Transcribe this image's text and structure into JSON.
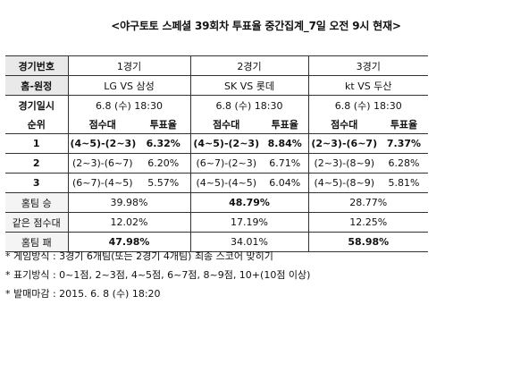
{
  "title": "<야구토토 스페셜 39회차 투표율 중간집계_7일 오전 9시 현재>",
  "labels": {
    "game_no": "경기번호",
    "teams": "홈-원정",
    "datetime": "경기일시",
    "rank": "순위",
    "score": "점수대",
    "rate": "투표율",
    "home_win": "홈팀 승",
    "same": "같은 점수대",
    "home_loss": "홈팀 패"
  },
  "games": [
    {
      "number": "1경기",
      "matchup": "LG VS 삼성",
      "datetime": "6.8 (수) 18:30",
      "ranks": [
        {
          "score": "(4~5)-(2~3)",
          "rate": "6.32%"
        },
        {
          "score": "(2~3)-(6~7)",
          "rate": "6.20%"
        },
        {
          "score": "(6~7)-(4~5)",
          "rate": "5.57%"
        }
      ],
      "home_win": "39.98%",
      "same": "12.02%",
      "home_loss": "47.98%"
    },
    {
      "number": "2경기",
      "matchup": "SK VS 롯데",
      "datetime": "6.8 (수) 18:30",
      "ranks": [
        {
          "score": "(4~5)-(2~3)",
          "rate": "8.84%"
        },
        {
          "score": "(6~7)-(2~3)",
          "rate": "6.71%"
        },
        {
          "score": "(4~5)-(4~5)",
          "rate": "6.04%"
        }
      ],
      "home_win": "48.79%",
      "same": "17.19%",
      "home_loss": "34.01%"
    },
    {
      "number": "3경기",
      "matchup": "kt VS 두산",
      "datetime": "6.8 (수) 18:30",
      "ranks": [
        {
          "score": "(2~3)-(6~7)",
          "rate": "7.37%"
        },
        {
          "score": "(2~3)-(8~9)",
          "rate": "6.28%"
        },
        {
          "score": "(4~5)-(8~9)",
          "rate": "5.81%"
        }
      ],
      "home_win": "28.77%",
      "same": "12.25%",
      "home_loss": "58.98%"
    }
  ],
  "rank_numbers": [
    "1",
    "2",
    "3"
  ],
  "notes": [
    "*  게임방식 : 3경기 6개팀(또는 2경기 4개팀) 최종 스코어 맞히기",
    "*  표기방식 : 0~1점, 2~3점, 4~5점, 6~7점, 8~9점, 10+(10점 이상)",
    "*  발매마감 : 2015. 6. 8 (수) 18:20"
  ]
}
